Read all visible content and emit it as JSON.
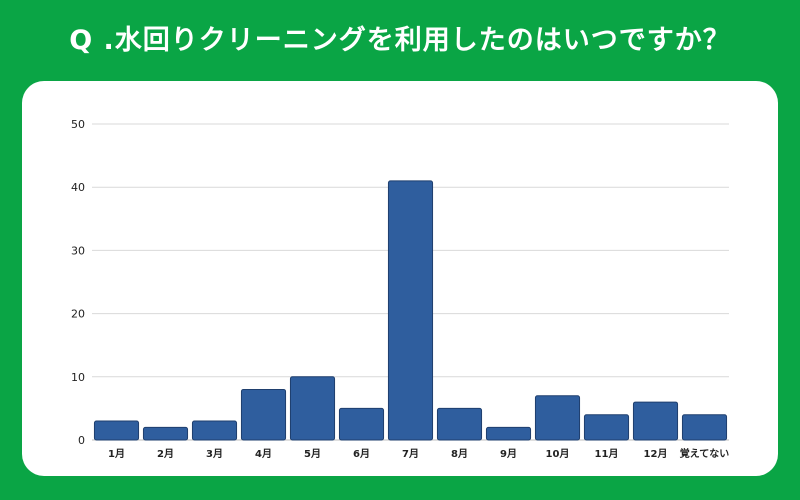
{
  "title": "Q .水回りクリーニングを利用したのはいつですか？",
  "colors": {
    "background": "#0aa545",
    "card": "#ffffff",
    "bar": "#2f5e9e",
    "bar_edge": "#1f3f6e",
    "grid": "#d9d9d9"
  },
  "chart_data": {
    "type": "bar",
    "title": "",
    "xlabel": "",
    "ylabel": "",
    "categories": [
      "1月",
      "2月",
      "3月",
      "4月",
      "5月",
      "6月",
      "7月",
      "8月",
      "9月",
      "10月",
      "11月",
      "12月",
      "覚えてない"
    ],
    "values": [
      3,
      2,
      3,
      8,
      10,
      5,
      41,
      5,
      2,
      7,
      4,
      6,
      4
    ],
    "ylim": [
      0,
      50
    ],
    "yticks": [
      0,
      10,
      20,
      30,
      40,
      50
    ],
    "grid": true,
    "legend": "none"
  }
}
